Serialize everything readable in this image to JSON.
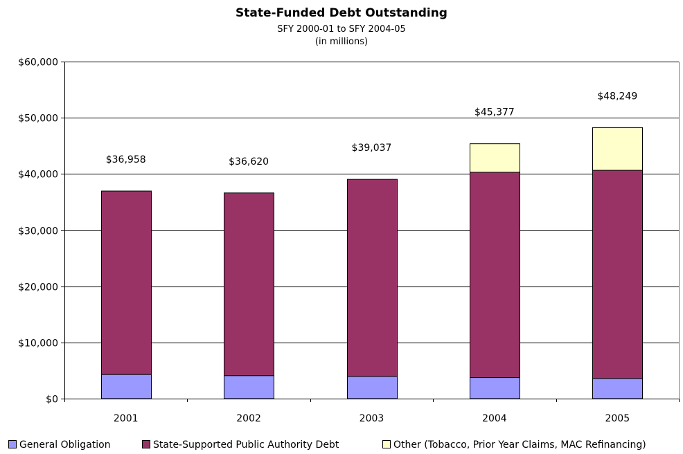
{
  "chart_data": {
    "type": "bar",
    "stacked": true,
    "title": "State-Funded Debt Outstanding",
    "subtitle_lines": [
      "SFY 2000-01 to SFY 2004-05",
      "(in millions)"
    ],
    "xlabel": "",
    "ylabel": "",
    "categories": [
      "2001",
      "2002",
      "2003",
      "2004",
      "2005"
    ],
    "series": [
      {
        "name": "General Obligation",
        "color": "#9999ff",
        "values": [
          4300,
          4100,
          3950,
          3750,
          3600
        ]
      },
      {
        "name": "State-Supported Public Authority Debt",
        "color": "#993366",
        "values": [
          32658,
          32520,
          35087,
          36550,
          37050
        ]
      },
      {
        "name": "Other (Tobacco, Prior Year Claims, MAC Refinancing)",
        "color": "#ffffcc",
        "values": [
          0,
          0,
          0,
          5077,
          7599
        ]
      }
    ],
    "totals": [
      36958,
      36620,
      39037,
      45377,
      48249
    ],
    "total_labels": [
      "$36,958",
      "$36,620",
      "$39,037",
      "$45,377",
      "$48,249"
    ],
    "ylim": [
      0,
      60000
    ],
    "yticks": [
      0,
      10000,
      20000,
      30000,
      40000,
      50000,
      60000
    ],
    "ytick_labels": [
      "$0",
      "$10,000",
      "$20,000",
      "$30,000",
      "$40,000",
      "$50,000",
      "$60,000"
    ],
    "grid": true,
    "legend_position": "bottom"
  }
}
